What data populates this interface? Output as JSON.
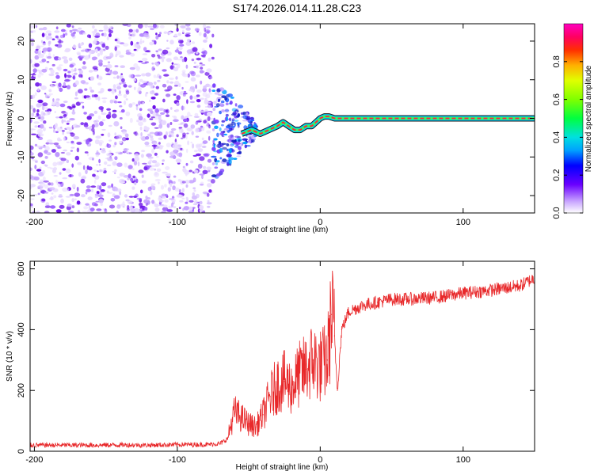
{
  "title": "S174.2026.014.11.28.C23",
  "chart_data": [
    {
      "type": "heatmap",
      "name": "spectrogram",
      "xlabel": "Height of straight line (km)",
      "ylabel": "Frequency (Hz)",
      "xlim": [
        -203,
        150
      ],
      "ylim": [
        -24.5,
        24.5
      ],
      "xticks": [
        -200,
        -100,
        0,
        100
      ],
      "yticks": [
        -20,
        -10,
        0,
        10,
        20
      ],
      "noise_region_x": [
        -200,
        -75
      ],
      "transition_region_x": [
        -75,
        -45
      ],
      "ridge": {
        "x": [
          -55,
          -48,
          -42,
          -36,
          -30,
          -26,
          -22,
          -18,
          -14,
          -10,
          -6,
          -3,
          0,
          3,
          6,
          10,
          50,
          100,
          150
        ],
        "y": [
          -4,
          -3,
          -4,
          -3,
          -2,
          -1,
          -2,
          -3,
          -3,
          -2,
          -2,
          -1,
          0,
          0.5,
          0.5,
          0,
          0,
          0,
          0
        ]
      },
      "colorbar": {
        "label": "Normalized spectral amplitude",
        "range": [
          0.0,
          1.0
        ],
        "ticks": [
          "0.0",
          "0.2",
          "0.4",
          "0.6",
          "0.8"
        ]
      }
    },
    {
      "type": "line",
      "name": "snr",
      "xlabel": "Height of straight line (km)",
      "ylabel": "SNR (10 * v/v)",
      "xlim": [
        -203,
        150
      ],
      "ylim": [
        0,
        625
      ],
      "xticks": [
        -200,
        -100,
        0,
        100
      ],
      "yticks": [
        0,
        200,
        400,
        600
      ],
      "color": "#e8282a",
      "series": [
        {
          "name": "SNR",
          "x": [
            -203,
            -180,
            -160,
            -140,
            -120,
            -100,
            -80,
            -70,
            -65,
            -60,
            -55,
            -50,
            -45,
            -40,
            -35,
            -30,
            -25,
            -20,
            -15,
            -10,
            -5,
            0,
            5,
            8,
            10,
            12,
            15,
            20,
            25,
            30,
            40,
            50,
            60,
            80,
            100,
            120,
            140,
            150
          ],
          "y": [
            20,
            20,
            20,
            21,
            20,
            22,
            22,
            25,
            40,
            130,
            110,
            90,
            80,
            120,
            180,
            220,
            230,
            210,
            250,
            270,
            300,
            280,
            300,
            450,
            380,
            200,
            400,
            460,
            470,
            480,
            490,
            500,
            500,
            505,
            520,
            530,
            545,
            570
          ]
        }
      ]
    }
  ]
}
